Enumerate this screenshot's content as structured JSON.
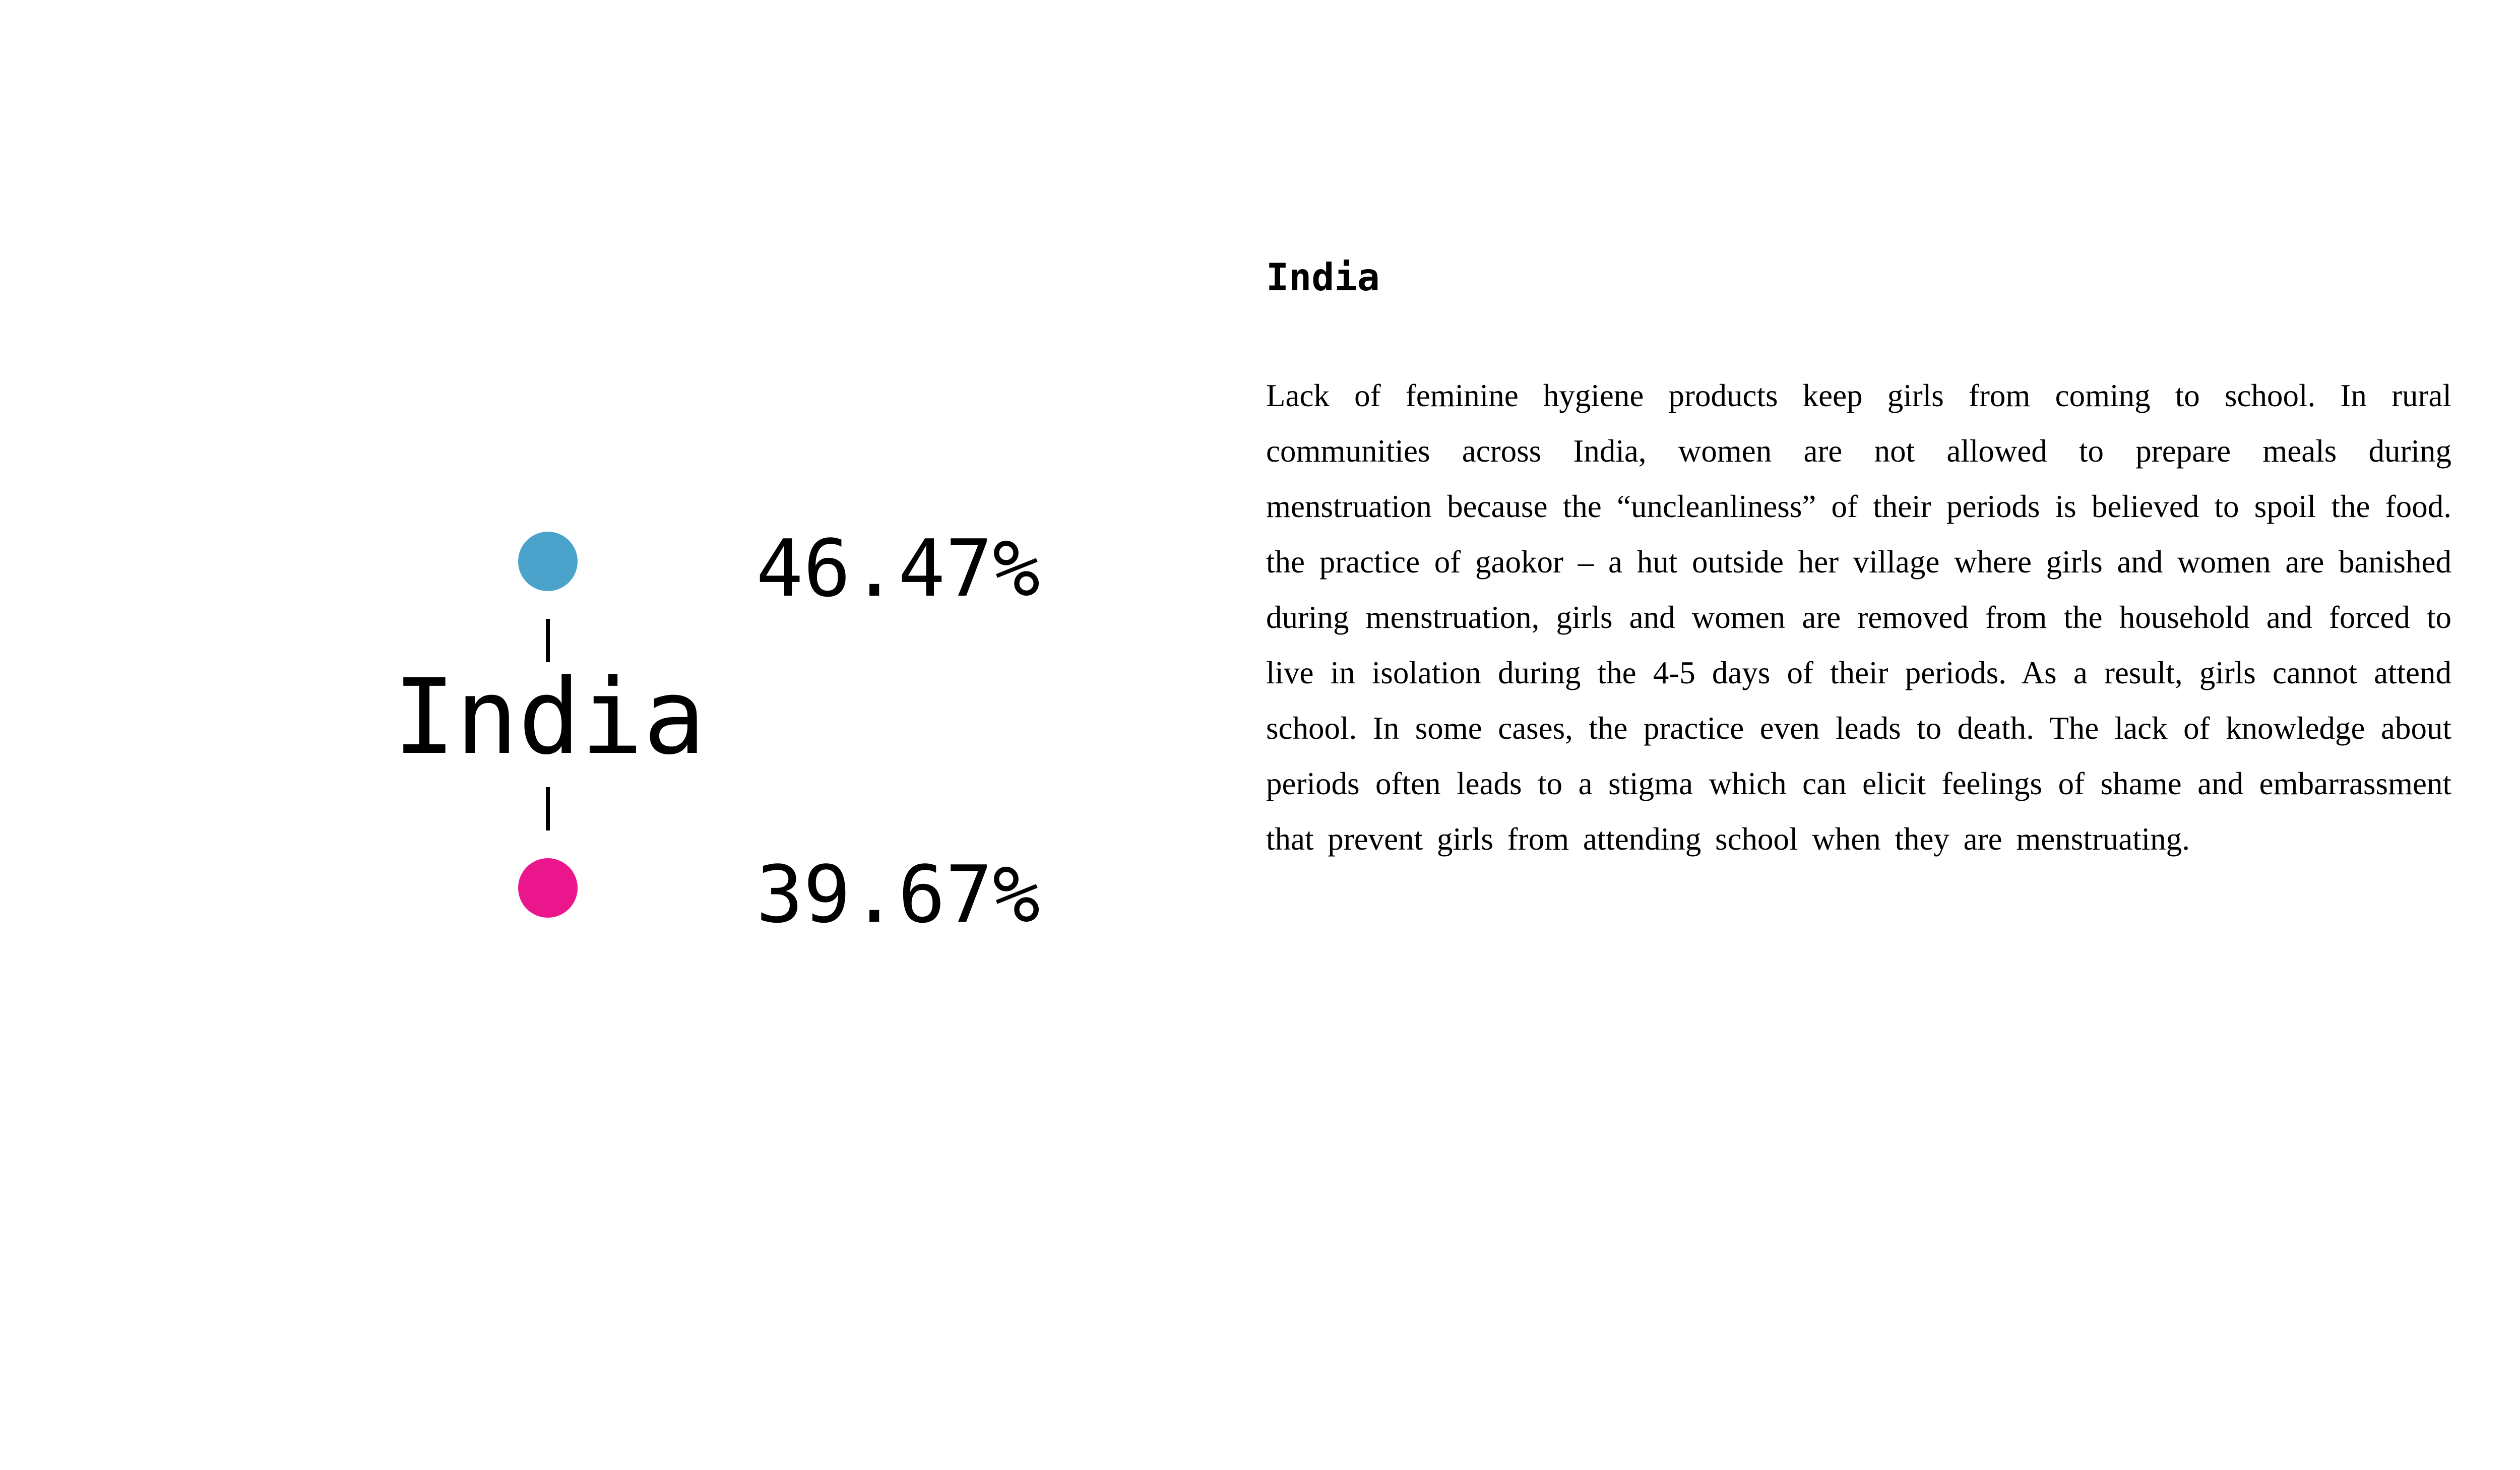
{
  "graphic": {
    "country": "India",
    "top_stat": {
      "value": "46.47%",
      "color": "#4ba3cc"
    },
    "bottom_stat": {
      "value": "39.67%",
      "color": "#ec168c"
    }
  },
  "panel": {
    "title": "India",
    "body": "Lack of feminine hygiene products keep girls from coming to school. In rural communities across India, women are not allowed to prepare meals during menstruation because the “uncleanliness” of their periods is believed to spoil the food. the practice of gaokor – a hut outside her village where girls and women are banished during menstruation, girls and women are removed from the household and forced to live in isolation during the 4-5 days of their periods. As a result, girls cannot attend school. In some cases, the practice even leads to death. The lack of knowledge about periods often leads to a stigma which can elicit feelings of shame and embarrassment that prevent girls from attending school when they are menstruating."
  }
}
